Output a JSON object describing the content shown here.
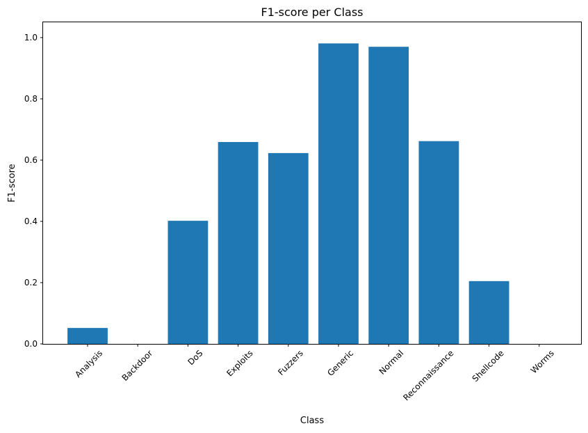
{
  "chart_data": {
    "type": "bar",
    "title": "F1-score per Class",
    "xlabel": "Class",
    "ylabel": "F1-score",
    "categories": [
      "Analysis",
      "Backdoor",
      "DoS",
      "Exploits",
      "Fuzzers",
      "Generic",
      "Normal",
      "Reconnaissance",
      "Shellcode",
      "Worms"
    ],
    "values": [
      0.052,
      0.0,
      0.402,
      0.659,
      0.623,
      0.981,
      0.97,
      0.662,
      0.205,
      0.0
    ],
    "ylim": [
      0,
      1.05
    ],
    "yticks": [
      "0.0",
      "0.2",
      "0.4",
      "0.6",
      "0.8",
      "1.0"
    ],
    "grid": false,
    "bar_color": "#1f77b4"
  }
}
